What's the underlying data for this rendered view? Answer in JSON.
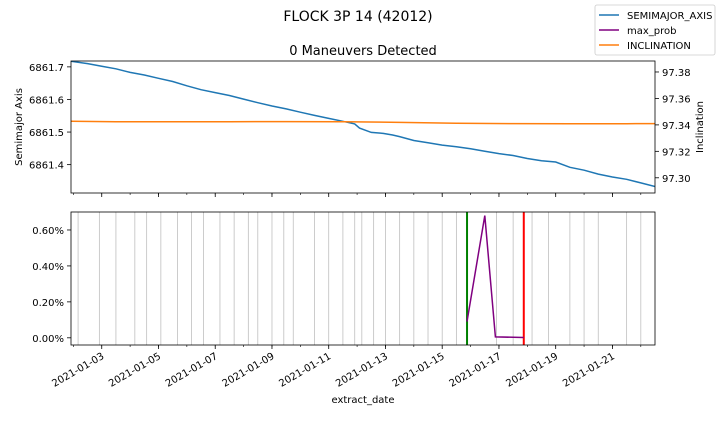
{
  "chart_data": {
    "type": "line",
    "suptitle": "FLOCK 3P 14 (42012)",
    "legend": {
      "placement": "top-right",
      "entries": [
        {
          "label": "SEMIMAJOR_AXIS",
          "color": "#1f77b4"
        },
        {
          "label": "max_prob",
          "color": "#800080"
        },
        {
          "label": "INCLINATION",
          "color": "#ff7f0e"
        }
      ]
    },
    "x_axis": {
      "label": "extract_date",
      "range": [
        "2021-01-01T22:00",
        "2021-01-22T12:00"
      ],
      "ticks": [
        "2021-01-03",
        "2021-01-05",
        "2021-01-07",
        "2021-01-09",
        "2021-01-11",
        "2021-01-13",
        "2021-01-15",
        "2021-01-17",
        "2021-01-19",
        "2021-01-21"
      ]
    },
    "top_panel": {
      "title": "0 Maneuvers Detected",
      "left_axis": {
        "label": "Semimajor Axis",
        "range": [
          6861.313,
          6861.718
        ],
        "ticks": [
          "6861.4",
          "6861.5",
          "6861.6",
          "6861.7"
        ]
      },
      "right_axis": {
        "label": "Inclination",
        "range": [
          97.2885,
          97.3883
        ],
        "ticks": [
          "97.30",
          "97.32",
          "97.34",
          "97.36",
          "97.38"
        ]
      },
      "series": [
        {
          "name": "SEMIMAJOR_AXIS",
          "axis": "left",
          "color": "#1f77b4",
          "points": [
            [
              "2021-01-01T22:00",
              6861.717
            ],
            [
              "2021-01-02T12:00",
              6861.71
            ],
            [
              "2021-01-03T00:00",
              6861.702
            ],
            [
              "2021-01-03T12:00",
              6861.694
            ],
            [
              "2021-01-04T00:00",
              6861.683
            ],
            [
              "2021-01-04T12:00",
              6861.675
            ],
            [
              "2021-01-05T00:00",
              6861.665
            ],
            [
              "2021-01-05T12:00",
              6861.655
            ],
            [
              "2021-01-06T00:00",
              6861.642
            ],
            [
              "2021-01-06T12:00",
              6861.63
            ],
            [
              "2021-01-07T00:00",
              6861.621
            ],
            [
              "2021-01-07T12:00",
              6861.612
            ],
            [
              "2021-01-08T00:00",
              6861.601
            ],
            [
              "2021-01-08T12:00",
              6861.59
            ],
            [
              "2021-01-09T00:00",
              6861.58
            ],
            [
              "2021-01-09T12:00",
              6861.571
            ],
            [
              "2021-01-10T00:00",
              6861.561
            ],
            [
              "2021-01-10T12:00",
              6861.551
            ],
            [
              "2021-01-11T00:00",
              6861.542
            ],
            [
              "2021-01-11T12:00",
              6861.533
            ],
            [
              "2021-01-11T22:00",
              6861.525
            ],
            [
              "2021-01-12T02:00",
              6861.512
            ],
            [
              "2021-01-12T12:00",
              6861.499
            ],
            [
              "2021-01-12T22:00",
              6861.496
            ],
            [
              "2021-01-13T06:00",
              6861.491
            ],
            [
              "2021-01-13T12:00",
              6861.486
            ],
            [
              "2021-01-14T00:00",
              6861.474
            ],
            [
              "2021-01-14T12:00",
              6861.467
            ],
            [
              "2021-01-15T00:00",
              6861.46
            ],
            [
              "2021-01-15T12:00",
              6861.455
            ],
            [
              "2021-01-16T00:00",
              6861.449
            ],
            [
              "2021-01-16T12:00",
              6861.441
            ],
            [
              "2021-01-17T00:00",
              6861.434
            ],
            [
              "2021-01-17T12:00",
              6861.428
            ],
            [
              "2021-01-18T00:00",
              6861.419
            ],
            [
              "2021-01-18T12:00",
              6861.412
            ],
            [
              "2021-01-19T00:00",
              6861.408
            ],
            [
              "2021-01-19T12:00",
              6861.392
            ],
            [
              "2021-01-20T00:00",
              6861.383
            ],
            [
              "2021-01-20T12:00",
              6861.371
            ],
            [
              "2021-01-21T00:00",
              6861.362
            ],
            [
              "2021-01-21T12:00",
              6861.355
            ],
            [
              "2021-01-22T00:00",
              6861.344
            ],
            [
              "2021-01-22T12:00",
              6861.333
            ]
          ]
        },
        {
          "name": "INCLINATION",
          "axis": "right",
          "color": "#ff7f0e",
          "points": [
            [
              "2021-01-01T22:00",
              97.3428
            ],
            [
              "2021-01-03T12:00",
              97.3423
            ],
            [
              "2021-01-05T12:00",
              97.3423
            ],
            [
              "2021-01-07T12:00",
              97.3424
            ],
            [
              "2021-01-09T12:00",
              97.3425
            ],
            [
              "2021-01-11T12:00",
              97.3424
            ],
            [
              "2021-01-13T12:00",
              97.3419
            ],
            [
              "2021-01-15T12:00",
              97.3413
            ],
            [
              "2021-01-17T12:00",
              97.341
            ],
            [
              "2021-01-19T12:00",
              97.3409
            ],
            [
              "2021-01-21T12:00",
              97.3409
            ],
            [
              "2021-01-22T12:00",
              97.341
            ]
          ]
        }
      ]
    },
    "bottom_panel": {
      "y_axis": {
        "range": [
          -0.0004,
          0.007
        ],
        "ticks": [
          "0.00%",
          "0.20%",
          "0.40%",
          "0.60%"
        ],
        "tick_values": [
          0,
          0.002,
          0.004,
          0.006
        ]
      },
      "series": [
        {
          "name": "max_prob",
          "color": "#800080",
          "points": [
            [
              "2021-01-15T21:00",
              0.0009
            ],
            [
              "2021-01-16T12:00",
              0.0068
            ],
            [
              "2021-01-16T21:00",
              5e-05
            ],
            [
              "2021-01-17T21:00",
              2e-05
            ]
          ]
        }
      ],
      "event_lines": [
        {
          "x": "2021-01-15T21:00",
          "color": "#008000"
        },
        {
          "x": "2021-01-17T21:00",
          "color": "#ff0000"
        }
      ],
      "gray_lines": [
        "2021-01-02T04:00",
        "2021-01-02T22:00",
        "2021-01-03T12:00",
        "2021-01-04T04:00",
        "2021-01-04T14:00",
        "2021-01-05T02:00",
        "2021-01-05T16:00",
        "2021-01-06T04:00",
        "2021-01-06T14:00",
        "2021-01-07T04:00",
        "2021-01-07T16:00",
        "2021-01-08T04:00",
        "2021-01-08T12:00",
        "2021-01-09T00:00",
        "2021-01-09T10:00",
        "2021-01-09T18:00",
        "2021-01-10T12:00",
        "2021-01-11T00:00",
        "2021-01-11T12:00",
        "2021-01-11T22:00",
        "2021-01-12T04:00",
        "2021-01-12T14:00",
        "2021-01-13T00:00",
        "2021-01-13T12:00",
        "2021-01-14T00:00",
        "2021-01-14T12:00",
        "2021-01-15T00:00",
        "2021-01-15T12:00",
        "2021-01-16T22:00",
        "2021-01-17T12:00",
        "2021-01-18T04:00",
        "2021-01-18T18:00",
        "2021-01-19T12:00",
        "2021-01-20T00:00",
        "2021-01-20T12:00",
        "2021-01-21T12:00",
        "2021-01-22T00:00"
      ]
    }
  }
}
